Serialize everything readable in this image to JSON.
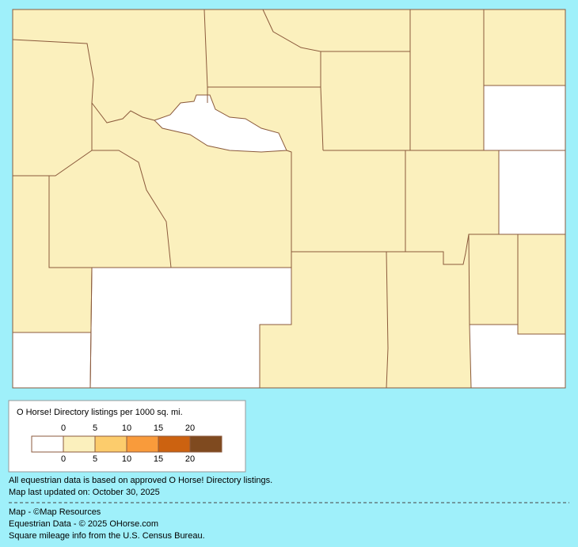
{
  "legend": {
    "title": "O Horse! Directory listings per 1000 sq. mi.",
    "top_labels": [
      0,
      5,
      10,
      15,
      20
    ],
    "bottom_labels": [
      0,
      5,
      10,
      15,
      20
    ],
    "colors": [
      "#ffffff",
      "#fbf0bd",
      "#fccc6c",
      "#f99b3b",
      "#cc6210",
      "#7f4a1f"
    ]
  },
  "notes": [
    "All equestrian data is based on approved O Horse! Directory listings.",
    "Map last updated on: October 30, 2025"
  ],
  "credits": [
    "Map - ©Map Resources",
    "Equestrian Data - © 2025 OHorse.com",
    "Square mileage info from the U.S. Census Bureau."
  ]
}
